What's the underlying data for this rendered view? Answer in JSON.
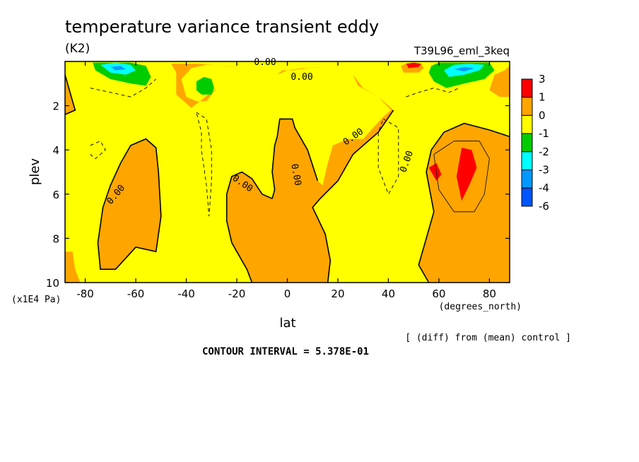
{
  "chart_data": {
    "type": "heatmap",
    "title": "temperature variance transient eddy",
    "units": "(K2)",
    "run_label": "T39L96_eml_3keq",
    "xlabel": "lat",
    "x_units": "(degrees_north)",
    "ylabel": "plev",
    "y_units": "(x1E4 Pa)",
    "xlim": [
      -88,
      88
    ],
    "ylim": [
      10,
      0
    ],
    "x_ticks": [
      -80,
      -60,
      -40,
      -20,
      0,
      20,
      40,
      60,
      80
    ],
    "y_ticks": [
      2,
      4,
      6,
      8,
      10
    ],
    "contour_labels": [
      "0.00",
      "0.00",
      "0.00",
      "0.00",
      "0.00",
      "0.00",
      "0.00"
    ],
    "footer_note": "[ (diff) from (mean) control ]",
    "contour_interval_text": "CONTOUR INTERVAL = 5.378E-01",
    "colorbar": {
      "levels": [
        "3",
        "1",
        "0",
        "-1",
        "-2",
        "-3",
        "-4",
        "-6"
      ],
      "colors": [
        "#ff0000",
        "#ffa500",
        "#ffff00",
        "#00cc00",
        "#00ffff",
        "#0099ff",
        "#0055ff"
      ]
    },
    "regions": [
      {
        "class": "0 to 1",
        "color": "#ffa500",
        "points": [
          [
            -85,
            8.6
          ],
          [
            -84,
            9.4
          ],
          [
            -82,
            10
          ],
          [
            -86,
            10
          ],
          [
            -88,
            10
          ],
          [
            -88,
            8.6
          ]
        ]
      },
      {
        "class": "0 to 1",
        "color": "#ffa500",
        "points": [
          [
            -73,
            6.6
          ],
          [
            -70,
            5.6
          ],
          [
            -66,
            4.6
          ],
          [
            -62,
            3.8
          ],
          [
            -56,
            3.5
          ],
          [
            -52,
            3.9
          ],
          [
            -51,
            5
          ],
          [
            -50,
            7
          ],
          [
            -52,
            8.6
          ],
          [
            -60,
            8.4
          ],
          [
            -68,
            9.4
          ],
          [
            -74,
            9.4
          ],
          [
            -75,
            8.2
          ]
        ]
      },
      {
        "class": "0 to 1",
        "color": "#ffa500",
        "points": [
          [
            -44,
            0.5
          ],
          [
            -46,
            0.1
          ],
          [
            -36,
            0.1
          ],
          [
            -25,
            0.2
          ],
          [
            -16,
            0.3
          ],
          [
            -8,
            0.3
          ],
          [
            -4,
            0.6
          ],
          [
            -2,
            0.4
          ],
          [
            2,
            0.4
          ],
          [
            8,
            0.3
          ],
          [
            16,
            0.25
          ],
          [
            24,
            0.2
          ],
          [
            26,
            0.6
          ],
          [
            28,
            1.1
          ],
          [
            36,
            1.6
          ],
          [
            41,
            2.2
          ],
          [
            38,
            2.5
          ],
          [
            34,
            3
          ],
          [
            30,
            3.5
          ],
          [
            24,
            3.5
          ],
          [
            18,
            3.8
          ],
          [
            16,
            4.6
          ],
          [
            14,
            5.6
          ],
          [
            12,
            5.4
          ],
          [
            8,
            4
          ],
          [
            3,
            3
          ],
          [
            2,
            2.6
          ],
          [
            -3,
            2.6
          ],
          [
            -4,
            3.4
          ],
          [
            -5,
            3.8
          ],
          [
            -6,
            5
          ],
          [
            -5,
            5.8
          ],
          [
            -6,
            6.2
          ],
          [
            -10,
            6
          ],
          [
            -14,
            5.3
          ],
          [
            -18,
            5
          ],
          [
            -22,
            5.2
          ],
          [
            -24,
            6
          ],
          [
            -24,
            7.2
          ],
          [
            -22,
            8.2
          ],
          [
            -16,
            9.4
          ],
          [
            -14,
            10
          ],
          [
            16,
            10
          ],
          [
            17,
            9
          ],
          [
            15,
            7.8
          ],
          [
            10,
            6.6
          ],
          [
            13,
            6.2
          ],
          [
            20,
            5.4
          ],
          [
            26,
            4.2
          ],
          [
            36,
            3.2
          ],
          [
            42,
            2.2
          ],
          [
            36,
            1.6
          ],
          [
            30,
            1.2
          ],
          [
            26,
            0.6
          ],
          [
            24,
            0.2
          ],
          [
            16,
            0.25
          ],
          [
            6,
            0.3
          ],
          [
            0,
            0.4
          ],
          [
            -4,
            0.6
          ],
          [
            -8,
            0.3
          ],
          [
            -16,
            0.3
          ],
          [
            -24,
            0.2
          ],
          [
            -32,
            0.15
          ],
          [
            -38,
            0.3
          ],
          [
            -42,
            0.8
          ],
          [
            -40,
            1.6
          ],
          [
            -36,
            1.8
          ],
          [
            -32,
            1.8
          ],
          [
            -30,
            1.5
          ],
          [
            -28,
            1.2
          ],
          [
            -38,
            2.1
          ],
          [
            -44,
            1.5
          ]
        ]
      },
      {
        "class": "0 to 1",
        "color": "#ffa500",
        "points": [
          [
            56,
            10
          ],
          [
            52,
            9.2
          ],
          [
            55,
            8
          ],
          [
            58,
            6.8
          ],
          [
            55,
            5
          ],
          [
            57,
            4
          ],
          [
            62,
            3.2
          ],
          [
            70,
            2.8
          ],
          [
            80,
            3.1
          ],
          [
            88,
            3.4
          ],
          [
            88,
            10
          ]
        ]
      },
      {
        "class": "0 to 1",
        "color": "#ffa500",
        "points": [
          [
            47,
            0.1
          ],
          [
            45,
            0.2
          ],
          [
            46,
            0.5
          ],
          [
            52,
            0.5
          ],
          [
            54,
            0.3
          ],
          [
            53,
            0.1
          ]
        ]
      },
      {
        "class": "0 to 1",
        "color": "#ffa500",
        "points": [
          [
            82,
            0.6
          ],
          [
            86,
            0.4
          ],
          [
            88,
            0.2
          ],
          [
            88,
            1.6
          ],
          [
            84,
            1.6
          ],
          [
            80,
            1.3
          ]
        ]
      },
      {
        "class": "0 to 1",
        "color": "#ffa500",
        "points": [
          [
            -88,
            0.6
          ],
          [
            -86,
            1.4
          ],
          [
            -84,
            2.2
          ],
          [
            -88,
            2.4
          ]
        ]
      },
      {
        "class": "1 to 3",
        "color": "#ff0000",
        "points": [
          [
            69,
            3.9
          ],
          [
            73,
            4
          ],
          [
            75,
            4.8
          ],
          [
            72,
            5.6
          ],
          [
            69,
            6.3
          ],
          [
            67,
            5.2
          ]
        ]
      },
      {
        "class": "1 to 3",
        "color": "#ff0000",
        "points": [
          [
            56,
            4.8
          ],
          [
            59,
            4.6
          ],
          [
            61,
            5.1
          ],
          [
            59,
            5.4
          ]
        ]
      },
      {
        "class": "1 to 3",
        "color": "#ff0000",
        "points": [
          [
            47,
            0.1
          ],
          [
            50,
            0.05
          ],
          [
            53,
            0.1
          ],
          [
            52,
            0.25
          ],
          [
            48,
            0.3
          ]
        ]
      },
      {
        "class": "-1 to -2",
        "color": "#00cc00",
        "points": [
          [
            -77,
            0.05
          ],
          [
            -62,
            0.05
          ],
          [
            -56,
            0.2
          ],
          [
            -54,
            0.7
          ],
          [
            -56,
            1.1
          ],
          [
            -62,
            1
          ],
          [
            -70,
            0.8
          ],
          [
            -76,
            0.4
          ]
        ]
      },
      {
        "class": "-1 to -2",
        "color": "#00cc00",
        "points": [
          [
            57,
            0.2
          ],
          [
            60,
            0.05
          ],
          [
            72,
            0.05
          ],
          [
            80,
            0.05
          ],
          [
            82,
            0.4
          ],
          [
            78,
            0.8
          ],
          [
            70,
            1
          ],
          [
            63,
            1.2
          ],
          [
            58,
            0.9
          ],
          [
            56,
            0.5
          ]
        ]
      },
      {
        "class": "-1 to -2",
        "color": "#00cc00",
        "points": [
          [
            -36,
            0.9
          ],
          [
            -33,
            0.7
          ],
          [
            -30,
            0.8
          ],
          [
            -29,
            1.2
          ],
          [
            -30,
            1.5
          ],
          [
            -34,
            1.5
          ],
          [
            -36,
            1.3
          ]
        ]
      },
      {
        "class": "-2 to -3",
        "color": "#00ffff",
        "points": [
          [
            -74,
            0.15
          ],
          [
            -68,
            0.05
          ],
          [
            -62,
            0.15
          ],
          [
            -60,
            0.4
          ],
          [
            -64,
            0.6
          ],
          [
            -70,
            0.5
          ]
        ]
      },
      {
        "class": "-2 to -3",
        "color": "#00ffff",
        "points": [
          [
            62,
            0.4
          ],
          [
            66,
            0.15
          ],
          [
            72,
            0.1
          ],
          [
            78,
            0.15
          ],
          [
            76,
            0.4
          ],
          [
            70,
            0.6
          ],
          [
            64,
            0.7
          ]
        ]
      },
      {
        "class": "-3 to -4",
        "color": "#0099ff",
        "points": [
          [
            -70,
            0.25
          ],
          [
            -66,
            0.2
          ],
          [
            -64,
            0.35
          ],
          [
            -68,
            0.4
          ]
        ]
      },
      {
        "class": "-3 to -4",
        "color": "#0099ff",
        "points": [
          [
            66,
            0.35
          ],
          [
            70,
            0.25
          ],
          [
            74,
            0.3
          ],
          [
            70,
            0.45
          ]
        ]
      }
    ],
    "contour_lines": [
      {
        "style": "solid",
        "points": [
          [
            -88,
            0.6
          ],
          [
            -86,
            1.4
          ],
          [
            -84,
            2.2
          ],
          [
            -88,
            2.4
          ]
        ]
      },
      {
        "style": "solid",
        "points": [
          [
            -73,
            6.6
          ],
          [
            -70,
            5.6
          ],
          [
            -66,
            4.6
          ],
          [
            -62,
            3.8
          ],
          [
            -56,
            3.5
          ],
          [
            -52,
            3.9
          ],
          [
            -51,
            5
          ],
          [
            -50,
            7
          ],
          [
            -52,
            8.6
          ],
          [
            -60,
            8.4
          ],
          [
            -68,
            9.4
          ],
          [
            -74,
            9.4
          ],
          [
            -75,
            8.2
          ],
          [
            -73,
            6.6
          ]
        ]
      },
      {
        "style": "solid",
        "points": [
          [
            -24,
            6
          ],
          [
            -24,
            7.2
          ],
          [
            -22,
            8.2
          ],
          [
            -16,
            9.4
          ],
          [
            -14,
            10
          ]
        ]
      },
      {
        "style": "solid",
        "points": [
          [
            16,
            10
          ],
          [
            17,
            9
          ],
          [
            15,
            7.8
          ],
          [
            10,
            6.6
          ],
          [
            13,
            6.2
          ],
          [
            20,
            5.4
          ],
          [
            26,
            4.2
          ],
          [
            36,
            3.2
          ],
          [
            42,
            2.2
          ]
        ]
      },
      {
        "style": "solid",
        "points": [
          [
            56,
            10
          ],
          [
            52,
            9.2
          ],
          [
            55,
            8
          ],
          [
            58,
            6.8
          ],
          [
            55,
            5
          ],
          [
            57,
            4
          ],
          [
            62,
            3.2
          ],
          [
            70,
            2.8
          ],
          [
            80,
            3.1
          ],
          [
            88,
            3.4
          ]
        ]
      },
      {
        "style": "solid",
        "points": [
          [
            -6,
            6.2
          ],
          [
            -10,
            6
          ],
          [
            -14,
            5.3
          ],
          [
            -18,
            5
          ],
          [
            -22,
            5.2
          ],
          [
            -24,
            6
          ]
        ]
      },
      {
        "style": "solid",
        "points": [
          [
            12,
            5.4
          ],
          [
            8,
            4
          ],
          [
            3,
            3
          ],
          [
            2,
            2.6
          ],
          [
            -3,
            2.6
          ],
          [
            -4,
            3.4
          ],
          [
            -5,
            3.8
          ],
          [
            -6,
            5
          ],
          [
            -5,
            5.8
          ],
          [
            -6,
            6.2
          ]
        ]
      },
      {
        "style": "dashed",
        "points": [
          [
            -78,
            1.2
          ],
          [
            -70,
            1.4
          ],
          [
            -62,
            1.6
          ],
          [
            -56,
            1.2
          ],
          [
            -52,
            0.8
          ]
        ]
      },
      {
        "style": "dashed",
        "points": [
          [
            -36,
            2.3
          ],
          [
            -32,
            2.6
          ],
          [
            -30,
            4
          ],
          [
            -30,
            5.4
          ],
          [
            -31,
            7
          ],
          [
            -32,
            5.6
          ],
          [
            -34,
            4
          ],
          [
            -34,
            3.2
          ],
          [
            -36,
            2.3
          ]
        ]
      },
      {
        "style": "dashed",
        "points": [
          [
            -78,
            3.8
          ],
          [
            -74,
            3.6
          ],
          [
            -72,
            4
          ],
          [
            -76,
            4.4
          ],
          [
            -78,
            4.2
          ]
        ]
      },
      {
        "style": "dashed",
        "points": [
          [
            38,
            2.6
          ],
          [
            44,
            3
          ],
          [
            44,
            5.2
          ],
          [
            40,
            6
          ],
          [
            36,
            4.8
          ],
          [
            36,
            3.2
          ],
          [
            38,
            2.6
          ]
        ]
      },
      {
        "style": "dashed",
        "points": [
          [
            47,
            1.6
          ],
          [
            52,
            1.4
          ],
          [
            58,
            1.2
          ],
          [
            64,
            1.4
          ],
          [
            68,
            1.2
          ]
        ]
      },
      {
        "style": "thin",
        "points": [
          [
            58,
            4.2
          ],
          [
            66,
            3.6
          ],
          [
            76,
            3.6
          ],
          [
            80,
            4.4
          ],
          [
            78,
            6
          ],
          [
            74,
            6.8
          ],
          [
            66,
            6.8
          ],
          [
            60,
            5.8
          ],
          [
            58,
            4.2
          ]
        ]
      }
    ]
  }
}
